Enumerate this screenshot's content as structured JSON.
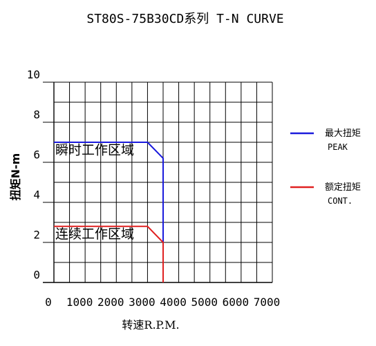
{
  "chart_data": {
    "type": "line",
    "title": "ST80S-75B30CD系列 T-N CURVE",
    "xlabel": "转速R.P.M.",
    "ylabel": "扭矩N-m",
    "xlim": [
      0,
      7000
    ],
    "ylim": [
      0,
      10
    ],
    "xticks": [
      "0",
      "1000",
      "2000",
      "3000",
      "4000",
      "5000",
      "6000",
      "7000"
    ],
    "yticks": [
      "0",
      "2",
      "4",
      "6",
      "8",
      "10"
    ],
    "grid": true,
    "legend_position": "right",
    "series": [
      {
        "name": "最大扭矩",
        "name_sub": "PEAK",
        "color": "#1a1adc",
        "x": [
          0,
          3000,
          3500,
          3500
        ],
        "y": [
          7.0,
          7.0,
          6.2,
          0
        ]
      },
      {
        "name": "额定扭矩",
        "name_sub": "CONT.",
        "color": "#e02020",
        "x": [
          0,
          3000,
          3500,
          3500
        ],
        "y": [
          2.8,
          2.8,
          2.0,
          0
        ]
      }
    ],
    "annotations": [
      {
        "text": "瞬时工作区域",
        "x": 0,
        "y": 6.4
      },
      {
        "text": "连续工作区域",
        "x": 0,
        "y": 2.2
      }
    ]
  }
}
